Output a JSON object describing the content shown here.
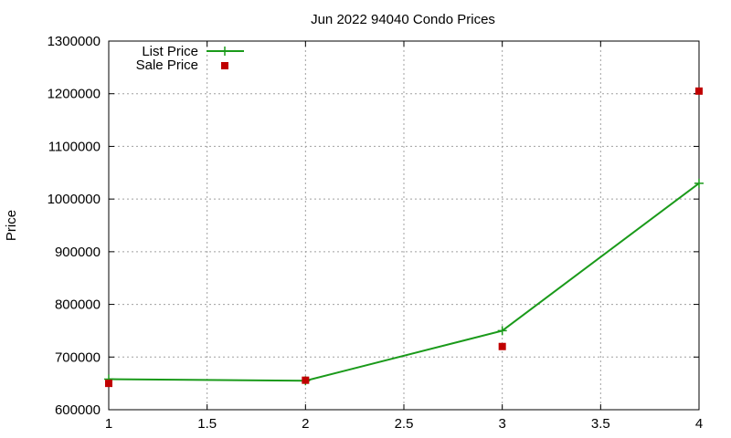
{
  "chart_data": {
    "type": "line",
    "title": "Jun 2022 94040 Condo Prices",
    "xlabel": "",
    "ylabel": "Price",
    "xlim": [
      1,
      4
    ],
    "ylim": [
      600000,
      1300000
    ],
    "x_ticks": [
      "1",
      "1.5",
      "2",
      "2.5",
      "3",
      "3.5",
      "4"
    ],
    "y_ticks": [
      "600000",
      "700000",
      "800000",
      "900000",
      "1000000",
      "1100000",
      "1200000",
      "1300000"
    ],
    "grid": true,
    "legend_position": "top-left",
    "series": [
      {
        "name": "List Price",
        "style": "line+cross",
        "color": "#1a9a1a",
        "x": [
          1,
          2,
          3,
          4
        ],
        "y": [
          658000,
          655000,
          750000,
          1030000
        ]
      },
      {
        "name": "Sale Price",
        "style": "square-markers",
        "color": "#c00000",
        "x": [
          1,
          2,
          3,
          4
        ],
        "y": [
          650000,
          656000,
          720000,
          1205000
        ]
      }
    ]
  }
}
